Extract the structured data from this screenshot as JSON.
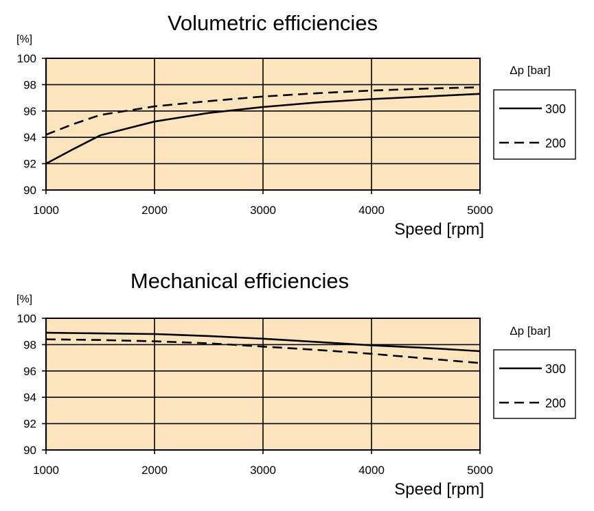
{
  "chart_data": [
    {
      "type": "line",
      "title": "Volumetric efficiencies",
      "ylabel": "[%]",
      "xlabel": "Speed [rpm]",
      "xlim": [
        1000,
        5000
      ],
      "ylim": [
        90,
        100
      ],
      "x_ticks": [
        "1000",
        "2000",
        "3000",
        "4000",
        "5000"
      ],
      "y_ticks": [
        "90",
        "92",
        "94",
        "96",
        "98",
        "100"
      ],
      "legend_title": "Δp [bar]",
      "series": [
        {
          "name": "300",
          "style": "solid",
          "x": [
            1000,
            1250,
            1500,
            2000,
            2500,
            3000,
            3500,
            4000,
            4500,
            5000
          ],
          "values": [
            92.0,
            93.1,
            94.15,
            95.2,
            95.85,
            96.3,
            96.65,
            96.9,
            97.1,
            97.3
          ]
        },
        {
          "name": "200",
          "style": "dashed",
          "x": [
            1000,
            1250,
            1500,
            2000,
            2500,
            3000,
            3500,
            4000,
            4500,
            5000
          ],
          "values": [
            94.2,
            95.0,
            95.7,
            96.35,
            96.75,
            97.1,
            97.35,
            97.55,
            97.7,
            97.8
          ]
        }
      ]
    },
    {
      "type": "line",
      "title": "Mechanical efficiencies",
      "ylabel": "[%]",
      "xlabel": "Speed [rpm]",
      "xlim": [
        1000,
        5000
      ],
      "ylim": [
        90,
        100
      ],
      "x_ticks": [
        "1000",
        "2000",
        "3000",
        "4000",
        "5000"
      ],
      "y_ticks": [
        "90",
        "92",
        "94",
        "96",
        "98",
        "100"
      ],
      "legend_title": "Δp [bar]",
      "series": [
        {
          "name": "300",
          "style": "solid",
          "x": [
            1000,
            1500,
            2000,
            2500,
            3000,
            3500,
            4000,
            4500,
            5000
          ],
          "values": [
            98.9,
            98.85,
            98.8,
            98.65,
            98.45,
            98.2,
            97.95,
            97.75,
            97.5
          ]
        },
        {
          "name": "200",
          "style": "dashed",
          "x": [
            1000,
            1500,
            2000,
            2500,
            3000,
            3500,
            4000,
            4500,
            5000
          ],
          "values": [
            98.4,
            98.35,
            98.25,
            98.1,
            97.85,
            97.6,
            97.3,
            96.95,
            96.6
          ]
        }
      ]
    }
  ]
}
